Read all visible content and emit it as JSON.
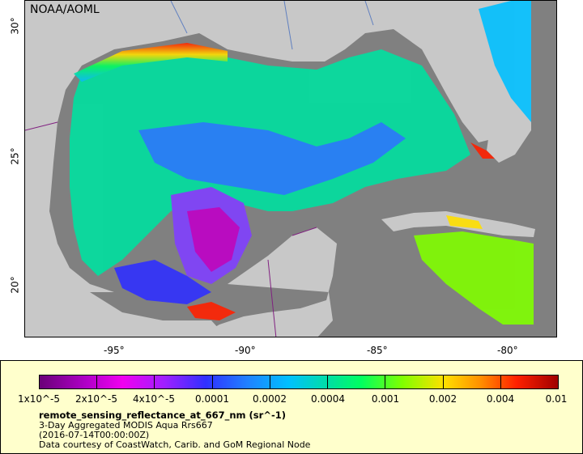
{
  "watermark": "NOAA/AOML",
  "axes": {
    "x_ticks": [
      "-95°",
      "-90°",
      "-85°",
      "-80°"
    ],
    "y_ticks": [
      "30°",
      "25°",
      "20°"
    ]
  },
  "legend": {
    "scale_labels": [
      "1x10^-5",
      "2x10^-5",
      "4x10^-5",
      "0.0001",
      "0.0002",
      "0.0004",
      "0.001",
      "0.002",
      "0.004",
      "0.01"
    ],
    "title": "remote_sensing_reflectance_at_667_nm (sr^-1)",
    "line1": "3-Day Aggregated MODIS Aqua Rrs667",
    "line2": "(2016-07-14T00:00:00Z)",
    "line3": "Data courtesy of CoastWatch, Carib. and GoM Regional Node"
  },
  "colors": {
    "land": "#c8c8c8",
    "no_data": "#808080",
    "legend_bg": "#ffffcc"
  }
}
